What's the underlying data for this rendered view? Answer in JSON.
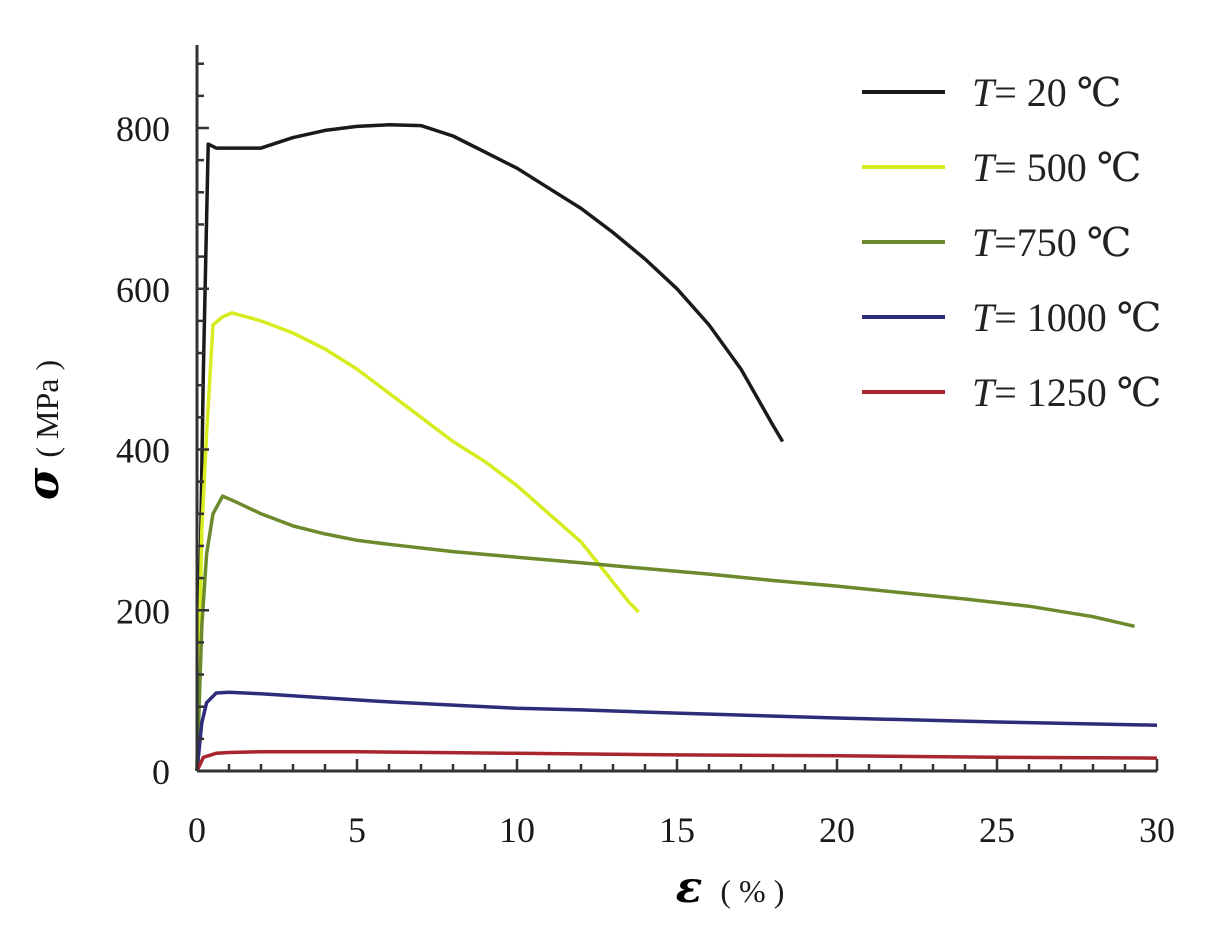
{
  "chart_data": {
    "type": "line",
    "xlabel": {
      "symbol": "ε",
      "unit": "( % )"
    },
    "ylabel": {
      "symbol": "σ",
      "unit": "( MPa )"
    },
    "xlim": [
      0,
      30
    ],
    "ylim": [
      0,
      900
    ],
    "x_ticks": [
      0,
      5,
      10,
      15,
      20,
      25,
      30
    ],
    "y_ticks": [
      0,
      200,
      400,
      600,
      800
    ],
    "grid": false,
    "legend_position": "top-right",
    "series": [
      {
        "name": "T=20 ℃",
        "legend": {
          "var": "T",
          "text": "= 20   ℃"
        },
        "color": "#1a1a1a",
        "points": [
          [
            0,
            0
          ],
          [
            0.2,
            500
          ],
          [
            0.35,
            780
          ],
          [
            0.6,
            775
          ],
          [
            1.0,
            775
          ],
          [
            2.0,
            775
          ],
          [
            3.0,
            788
          ],
          [
            4.0,
            797
          ],
          [
            5.0,
            802
          ],
          [
            6.0,
            804
          ],
          [
            7.0,
            803
          ],
          [
            8.0,
            790
          ],
          [
            9.0,
            770
          ],
          [
            10.0,
            750
          ],
          [
            11.0,
            725
          ],
          [
            12.0,
            700
          ],
          [
            13.0,
            670
          ],
          [
            14.0,
            637
          ],
          [
            15.0,
            600
          ],
          [
            16.0,
            555
          ],
          [
            17.0,
            500
          ],
          [
            18.0,
            430
          ],
          [
            18.3,
            410
          ]
        ]
      },
      {
        "name": "T=500 ℃",
        "legend": {
          "var": "T",
          "text": "= 500 ℃"
        },
        "color": "#d6ec1e",
        "points": [
          [
            0,
            0
          ],
          [
            0.15,
            300
          ],
          [
            0.3,
            420
          ],
          [
            0.5,
            555
          ],
          [
            0.8,
            565
          ],
          [
            1.1,
            570
          ],
          [
            2.0,
            560
          ],
          [
            3.0,
            545
          ],
          [
            4.0,
            525
          ],
          [
            5.0,
            500
          ],
          [
            6.0,
            470
          ],
          [
            7.0,
            440
          ],
          [
            8.0,
            410
          ],
          [
            9.0,
            385
          ],
          [
            10.0,
            355
          ],
          [
            11.0,
            320
          ],
          [
            12.0,
            285
          ],
          [
            12.5,
            260
          ],
          [
            13.0,
            235
          ],
          [
            13.5,
            210
          ],
          [
            13.8,
            198
          ]
        ]
      },
      {
        "name": "T=750 ℃",
        "legend": {
          "var": "T",
          "text": "=750 ℃"
        },
        "color": "#6b8a2c",
        "points": [
          [
            0,
            0
          ],
          [
            0.15,
            180
          ],
          [
            0.3,
            270
          ],
          [
            0.5,
            320
          ],
          [
            0.8,
            342
          ],
          [
            1.2,
            335
          ],
          [
            2.0,
            320
          ],
          [
            3.0,
            305
          ],
          [
            4.0,
            295
          ],
          [
            5.0,
            287
          ],
          [
            6.0,
            282
          ],
          [
            8.0,
            273
          ],
          [
            10.0,
            266
          ],
          [
            12.0,
            259
          ],
          [
            14.0,
            252
          ],
          [
            16.0,
            245
          ],
          [
            18.0,
            237
          ],
          [
            20.0,
            230
          ],
          [
            22.0,
            222
          ],
          [
            24.0,
            214
          ],
          [
            26.0,
            205
          ],
          [
            28.0,
            192
          ],
          [
            29.3,
            180
          ]
        ]
      },
      {
        "name": "T=1000 ℃",
        "legend": {
          "var": "T",
          "text": "= 1000 ℃"
        },
        "color": "#2e2d7a",
        "points": [
          [
            0,
            0
          ],
          [
            0.15,
            60
          ],
          [
            0.3,
            85
          ],
          [
            0.6,
            97
          ],
          [
            1.0,
            98
          ],
          [
            2.0,
            96
          ],
          [
            4.0,
            91
          ],
          [
            6.0,
            86
          ],
          [
            8.0,
            82
          ],
          [
            10.0,
            78
          ],
          [
            12.0,
            76
          ],
          [
            15.0,
            72
          ],
          [
            20.0,
            66
          ],
          [
            25.0,
            61
          ],
          [
            30.0,
            57
          ]
        ]
      },
      {
        "name": "T=1250 ℃",
        "legend": {
          "var": "T",
          "text": "= 1250 ℃"
        },
        "color": "#a8242e",
        "points": [
          [
            0,
            0
          ],
          [
            0.2,
            17
          ],
          [
            0.6,
            22
          ],
          [
            1.0,
            23
          ],
          [
            2.0,
            24
          ],
          [
            3.0,
            24
          ],
          [
            5.0,
            24
          ],
          [
            10.0,
            22
          ],
          [
            15.0,
            20
          ],
          [
            20.0,
            19
          ],
          [
            25.0,
            17
          ],
          [
            30.0,
            16
          ]
        ]
      }
    ]
  }
}
